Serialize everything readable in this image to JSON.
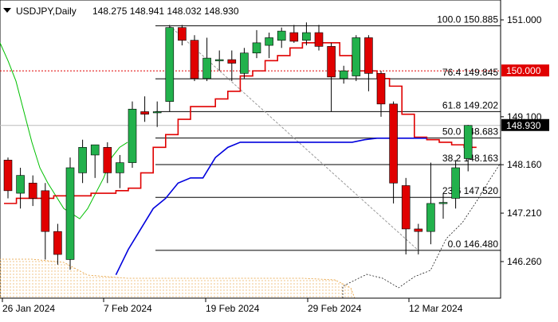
{
  "header": {
    "symbol": "USDJPY,Daily",
    "ohlc_text": "148.275 148.941 148.032 148.930"
  },
  "chart_data": {
    "type": "candlestick",
    "x_tick_labels": [
      "26 Jan 2024",
      "7 Feb 2024",
      "19 Feb 2024",
      "29 Feb 2024",
      "12 Mar 2024"
    ],
    "y_tick_labels": [
      "151.000",
      "149.100",
      "148.160",
      "147.210",
      "146.260"
    ],
    "ylim": [
      145.9,
      151.2
    ],
    "candles": [
      {
        "o": 148.25,
        "h": 148.3,
        "l": 147.5,
        "c": 147.65
      },
      {
        "o": 147.6,
        "h": 148.1,
        "l": 147.3,
        "c": 147.95
      },
      {
        "o": 147.8,
        "h": 147.95,
        "l": 147.35,
        "c": 147.5
      },
      {
        "o": 147.65,
        "h": 147.8,
        "l": 146.3,
        "c": 146.85
      },
      {
        "o": 146.85,
        "h": 147.0,
        "l": 146.2,
        "c": 146.4
      },
      {
        "o": 146.3,
        "h": 148.3,
        "l": 146.1,
        "c": 148.1
      },
      {
        "o": 148.0,
        "h": 148.65,
        "l": 147.8,
        "c": 148.5
      },
      {
        "o": 148.35,
        "h": 148.55,
        "l": 147.9,
        "c": 148.55
      },
      {
        "o": 148.5,
        "h": 148.6,
        "l": 147.8,
        "c": 148.0
      },
      {
        "o": 148.0,
        "h": 148.35,
        "l": 147.7,
        "c": 148.2
      },
      {
        "o": 148.2,
        "h": 149.4,
        "l": 148.1,
        "c": 149.25
      },
      {
        "o": 149.2,
        "h": 149.5,
        "l": 149.0,
        "c": 149.15
      },
      {
        "o": 149.18,
        "h": 149.4,
        "l": 148.9,
        "c": 149.2
      },
      {
        "o": 149.4,
        "h": 150.9,
        "l": 149.2,
        "c": 150.85
      },
      {
        "o": 150.85,
        "h": 150.9,
        "l": 150.5,
        "c": 150.6
      },
      {
        "o": 150.6,
        "h": 150.7,
        "l": 149.8,
        "c": 149.85
      },
      {
        "o": 149.85,
        "h": 150.65,
        "l": 149.8,
        "c": 150.25
      },
      {
        "o": 150.2,
        "h": 150.4,
        "l": 150.0,
        "c": 150.22
      },
      {
        "o": 150.22,
        "h": 150.4,
        "l": 149.8,
        "c": 150.15
      },
      {
        "o": 149.95,
        "h": 150.45,
        "l": 149.85,
        "c": 150.35
      },
      {
        "o": 150.35,
        "h": 150.8,
        "l": 150.25,
        "c": 150.55
      },
      {
        "o": 150.5,
        "h": 150.75,
        "l": 150.25,
        "c": 150.65
      },
      {
        "o": 150.6,
        "h": 150.85,
        "l": 150.45,
        "c": 150.78
      },
      {
        "o": 150.75,
        "h": 150.9,
        "l": 150.55,
        "c": 150.58
      },
      {
        "o": 150.6,
        "h": 150.95,
        "l": 150.5,
        "c": 150.75
      },
      {
        "o": 150.75,
        "h": 150.9,
        "l": 150.4,
        "c": 150.48
      },
      {
        "o": 150.48,
        "h": 150.55,
        "l": 149.2,
        "c": 149.88
      },
      {
        "o": 149.85,
        "h": 150.1,
        "l": 149.75,
        "c": 150.0
      },
      {
        "o": 149.9,
        "h": 150.7,
        "l": 149.8,
        "c": 150.65
      },
      {
        "o": 150.65,
        "h": 150.7,
        "l": 149.6,
        "c": 149.95
      },
      {
        "o": 149.95,
        "h": 150.0,
        "l": 149.1,
        "c": 149.35
      },
      {
        "o": 149.35,
        "h": 149.4,
        "l": 147.4,
        "c": 147.8
      },
      {
        "o": 147.75,
        "h": 147.9,
        "l": 146.4,
        "c": 146.9
      },
      {
        "o": 146.9,
        "h": 147.0,
        "l": 146.4,
        "c": 146.85
      },
      {
        "o": 146.85,
        "h": 148.2,
        "l": 146.6,
        "c": 147.4
      },
      {
        "o": 147.4,
        "h": 147.6,
        "l": 147.1,
        "c": 147.42
      },
      {
        "o": 147.5,
        "h": 148.25,
        "l": 147.3,
        "c": 148.1
      },
      {
        "o": 148.28,
        "h": 148.94,
        "l": 148.03,
        "c": 148.93
      }
    ],
    "fib_levels": [
      {
        "label": "100.0 150.885",
        "value": 150.885
      },
      {
        "label": "76.4 149.845",
        "value": 149.845
      },
      {
        "label": "61.8 149.202",
        "value": 149.202
      },
      {
        "label": "50.0 148.683",
        "value": 148.683
      },
      {
        "label": "38.2 148.163",
        "value": 148.163
      },
      {
        "label": "23.6 147.520",
        "value": 147.52
      },
      {
        "label": "0.0 146.480",
        "value": 146.48
      }
    ],
    "red_dotted_level": 150.0,
    "price_tags": [
      {
        "label": "150.000",
        "value": 150.0,
        "bg": "#e00000",
        "fg": "#ffffff"
      },
      {
        "label": "148.930",
        "value": 148.93,
        "bg": "#000000",
        "fg": "#ffffff"
      }
    ],
    "colors": {
      "bull": "#22b14c",
      "bear": "#e00000",
      "wick": "#000000",
      "ma_fast": "#00c000",
      "ma_mid": "#e00000",
      "ma_slow": "#0000dd",
      "cloud": "#e59a30",
      "cloud2": "#000000"
    }
  }
}
